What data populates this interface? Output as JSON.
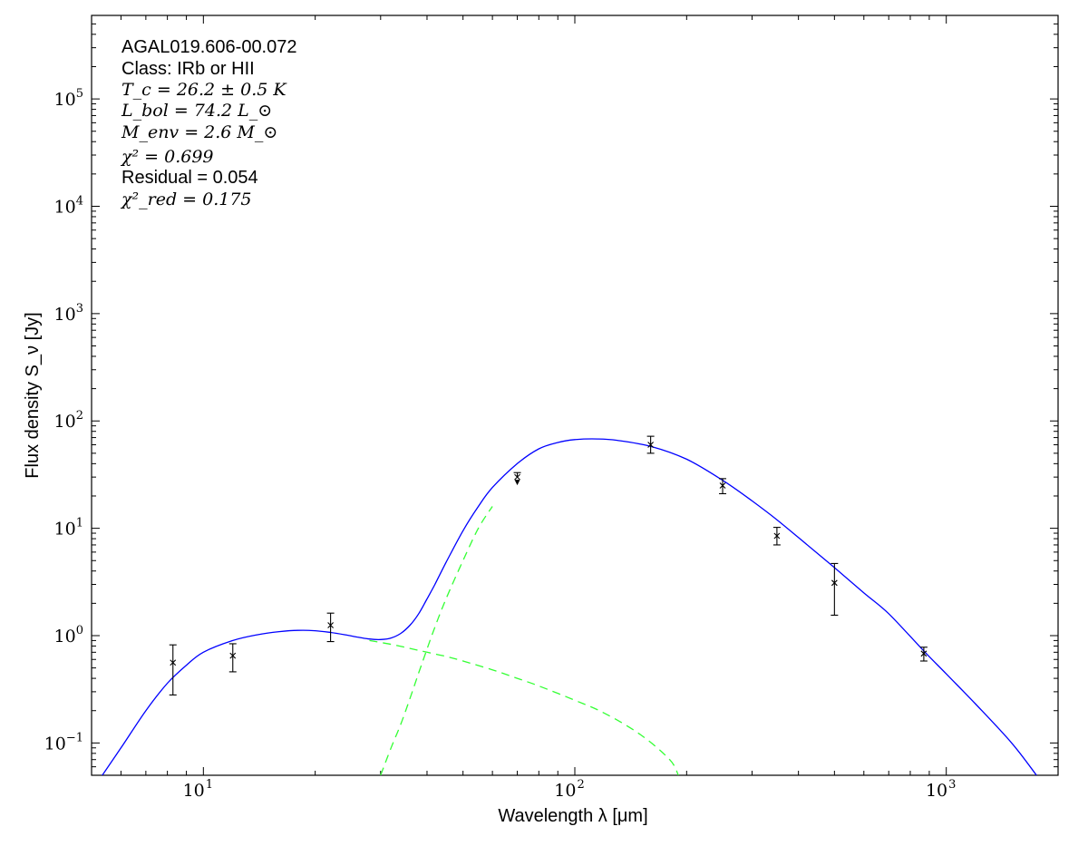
{
  "chart_data": {
    "type": "scatter",
    "xscale": "log",
    "yscale": "log",
    "xlim": [
      5,
      2000
    ],
    "ylim": [
      0.05,
      600000
    ],
    "xlabel": "Wavelength λ [μm]",
    "ylabel": "Flux density S_ν [Jy]",
    "x_ticks": [
      {
        "value": 10,
        "base": "10",
        "exp": "1"
      },
      {
        "value": 100,
        "base": "10",
        "exp": "2"
      },
      {
        "value": 1000,
        "base": "10",
        "exp": "3"
      }
    ],
    "y_ticks": [
      {
        "value": 0.1,
        "base": "10",
        "exp": "−1"
      },
      {
        "value": 1,
        "base": "10",
        "exp": "0"
      },
      {
        "value": 10,
        "base": "10",
        "exp": "1"
      },
      {
        "value": 100,
        "base": "10",
        "exp": "2"
      },
      {
        "value": 1000,
        "base": "10",
        "exp": "3"
      },
      {
        "value": 10000,
        "base": "10",
        "exp": "4"
      },
      {
        "value": 100000,
        "base": "10",
        "exp": "5"
      }
    ],
    "annotations": {
      "source": "AGAL019.606-00.072",
      "class": "Class: IRb or HII",
      "tc": "T_c = 26.2 ± 0.5 K",
      "lbol": "L_bol = 74.2 L_⊙",
      "menv": "M_env = 2.6 M_⊙",
      "chi2": "χ² = 0.699",
      "residual": "Residual = 0.054",
      "chi2red": "χ²_red = 0.175"
    },
    "points": [
      {
        "x": 8.28,
        "y": 0.56,
        "ylo": 0.28,
        "yhi": 0.82,
        "upper_limit": false
      },
      {
        "x": 12.0,
        "y": 0.65,
        "ylo": 0.46,
        "yhi": 0.84,
        "upper_limit": false
      },
      {
        "x": 22.0,
        "y": 1.25,
        "ylo": 0.88,
        "yhi": 1.62,
        "upper_limit": false
      },
      {
        "x": 70.0,
        "y": 30.0,
        "ylo": 30.0,
        "yhi": 33.0,
        "upper_limit": true
      },
      {
        "x": 160.0,
        "y": 60.0,
        "ylo": 50.0,
        "yhi": 72.0,
        "upper_limit": false
      },
      {
        "x": 250.0,
        "y": 25.0,
        "ylo": 21.0,
        "yhi": 29.0,
        "upper_limit": false
      },
      {
        "x": 350.0,
        "y": 8.5,
        "ylo": 7.0,
        "yhi": 10.2,
        "upper_limit": false
      },
      {
        "x": 500.0,
        "y": 3.1,
        "ylo": 1.55,
        "yhi": 4.7,
        "upper_limit": false
      },
      {
        "x": 870.0,
        "y": 0.68,
        "ylo": 0.58,
        "yhi": 0.78,
        "upper_limit": false
      }
    ],
    "series": [
      {
        "style": "solid",
        "color": "#0000ff",
        "x": [
          5.3,
          6,
          7,
          8,
          9,
          10,
          12,
          14,
          16,
          18,
          20,
          22,
          24,
          26,
          28,
          30,
          32,
          34,
          36,
          38,
          40,
          42,
          45,
          50,
          55,
          60,
          70,
          80,
          90,
          100,
          115,
          130,
          160,
          200,
          250,
          300,
          350,
          400,
          500,
          600,
          700,
          870,
          1000,
          1200,
          1500,
          1750
        ],
        "y": [
          0.048,
          0.09,
          0.2,
          0.36,
          0.53,
          0.7,
          0.9,
          1.02,
          1.09,
          1.12,
          1.11,
          1.07,
          1.02,
          0.97,
          0.93,
          0.92,
          0.95,
          1.05,
          1.25,
          1.6,
          2.2,
          3.0,
          4.8,
          9.5,
          16,
          24,
          40,
          55,
          63,
          67,
          68,
          66,
          58,
          44,
          28,
          18,
          12,
          8.2,
          4.3,
          2.5,
          1.6,
          0.72,
          0.44,
          0.23,
          0.1,
          0.05
        ]
      },
      {
        "style": "dashed",
        "color": "#33ff33",
        "x": [
          28,
          32,
          36,
          40,
          45,
          50,
          60,
          70,
          80,
          100,
          120,
          150,
          180,
          190
        ],
        "y": [
          0.9,
          0.83,
          0.76,
          0.7,
          0.64,
          0.58,
          0.48,
          0.4,
          0.34,
          0.25,
          0.19,
          0.12,
          0.07,
          0.05
        ]
      },
      {
        "style": "dashed",
        "color": "#33ff33",
        "x": [
          30,
          32,
          34,
          36,
          38,
          40,
          42,
          45,
          50,
          55,
          60
        ],
        "y": [
          0.05,
          0.09,
          0.15,
          0.26,
          0.45,
          0.75,
          1.2,
          2.2,
          5.0,
          10,
          16
        ]
      }
    ]
  }
}
